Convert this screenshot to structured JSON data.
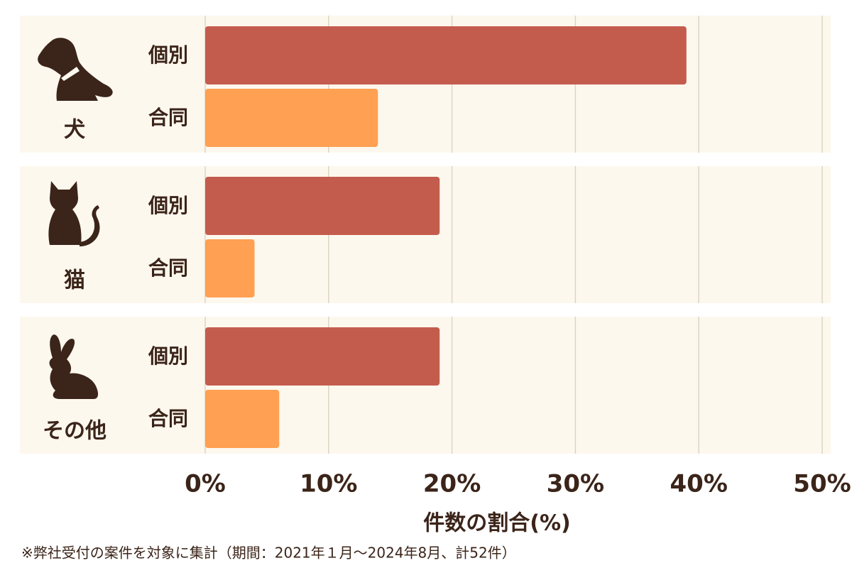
{
  "chart_data": {
    "type": "grouped-hbar",
    "categories": [
      "犬",
      "猫",
      "その他"
    ],
    "series": [
      {
        "name": "個別",
        "color": "#c45c4e",
        "values": [
          39,
          19,
          19
        ]
      },
      {
        "name": "合同",
        "color": "#ffa052",
        "values": [
          14,
          4,
          6
        ]
      }
    ],
    "xlim": [
      0,
      50
    ],
    "xticks": [
      {
        "value": 0,
        "label": "0%"
      },
      {
        "value": 10,
        "label": "10%"
      },
      {
        "value": 20,
        "label": "20%"
      },
      {
        "value": 30,
        "label": "30%"
      },
      {
        "value": 40,
        "label": "40%"
      },
      {
        "value": 50,
        "label": "50%"
      }
    ],
    "xlabel": "件数の割合(%)",
    "grid": true,
    "footnote": "※弊社受付の案件を対象に集計（期間：2021年１月〜2024年8月、計52件）"
  }
}
